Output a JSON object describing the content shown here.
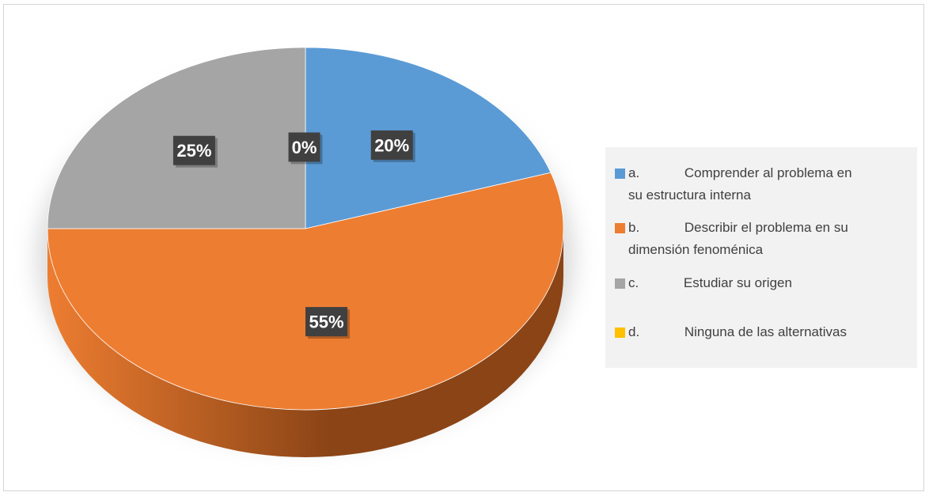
{
  "chart_data": {
    "type": "pie",
    "title": "",
    "slices": [
      {
        "label": "a.\tComprender al problema en su estructura interna",
        "value": 20,
        "data_label": "20%",
        "color": "#5b9bd5",
        "side_color": "#2e5f8a"
      },
      {
        "label": "b.\tDescribir el problema en su dimensión fenoménica",
        "value": 55,
        "data_label": "55%",
        "color": "#ed7d31",
        "side_color": "#8a4416"
      },
      {
        "label": "c.\tEstudiar su origen",
        "value": 25,
        "data_label": "25%",
        "color": "#a5a5a5",
        "side_color": "#5e5e5e"
      },
      {
        "label": "d.\tNinguna de las alternativas",
        "value": 0,
        "data_label": "0%",
        "color": "#ffc000",
        "side_color": "#8a6a00"
      }
    ],
    "legend": {
      "position": "right",
      "items": [
        {
          "letter": "a.",
          "text": "Comprender al problema en",
          "text2": "su estructura interna",
          "color": "#5b9bd5"
        },
        {
          "letter": "b.",
          "text": "Describir el problema en su",
          "text2": "dimensión fenoménica",
          "color": "#ed7d31"
        },
        {
          "letter": "c.",
          "text": "Estudiar su origen",
          "text2": "",
          "color": "#a5a5a5"
        },
        {
          "letter": "d.",
          "text": "Ninguna de las alternativas",
          "text2": "",
          "color": "#ffc000"
        }
      ]
    },
    "data_label_style": {
      "background": "#404040",
      "text_color": "#ffffff"
    }
  }
}
